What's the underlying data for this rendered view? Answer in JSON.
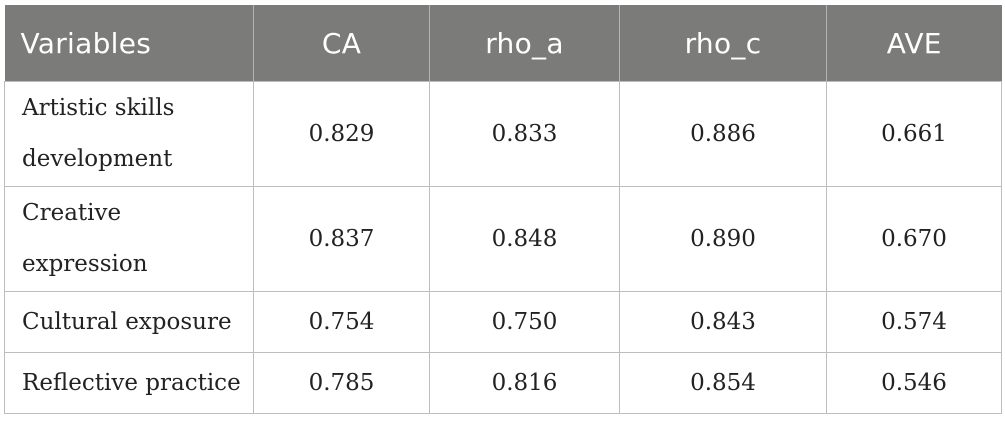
{
  "table": {
    "headers": [
      "Variables",
      "CA",
      "rho_a",
      "rho_c",
      "AVE"
    ],
    "rows": [
      {
        "variable": "Artistic skills development",
        "ca": "0.829",
        "rho_a": "0.833",
        "rho_c": "0.886",
        "ave": "0.661"
      },
      {
        "variable": "Creative expression",
        "ca": "0.837",
        "rho_a": "0.848",
        "rho_c": "0.890",
        "ave": "0.670"
      },
      {
        "variable": "Cultural exposure",
        "ca": "0.754",
        "rho_a": "0.750",
        "rho_c": "0.843",
        "ave": "0.574"
      },
      {
        "variable": "Reflective practice",
        "ca": "0.785",
        "rho_a": "0.816",
        "rho_c": "0.854",
        "ave": "0.546"
      }
    ]
  }
}
